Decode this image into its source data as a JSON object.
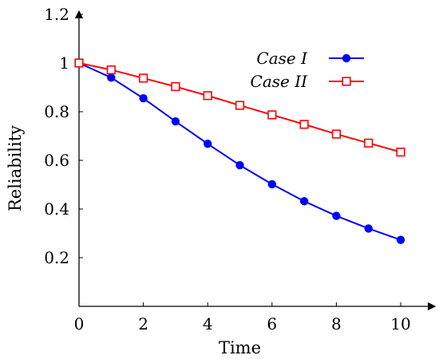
{
  "chart_data": {
    "type": "line",
    "title": "",
    "xlabel": "Time",
    "ylabel": "Reliability",
    "xlim": [
      0,
      10.9
    ],
    "ylim": [
      0,
      1.2
    ],
    "x_ticks": [
      0,
      2,
      4,
      6,
      8,
      10
    ],
    "x_tick_labels": [
      "0",
      "2",
      "4",
      "6",
      "8",
      "10"
    ],
    "y_ticks": [
      0.2,
      0.4,
      0.6,
      0.8,
      1.0,
      1.2
    ],
    "y_tick_labels": [
      "0.2",
      "0.4",
      "0.6",
      "0.8",
      "1",
      "1.2"
    ],
    "grid": false,
    "legend_position": "top-right",
    "series": [
      {
        "name": "Case I",
        "color": "#0000ff",
        "marker": "filled-circle",
        "x": [
          0,
          1,
          2,
          3,
          4,
          5,
          6,
          7,
          8,
          9,
          10
        ],
        "y": [
          1.0,
          0.94,
          0.855,
          0.76,
          0.668,
          0.58,
          0.502,
          0.432,
          0.372,
          0.32,
          0.273
        ]
      },
      {
        "name": "Case II",
        "color": "#ff0000",
        "marker": "open-square",
        "x": [
          0,
          1,
          2,
          3,
          4,
          5,
          6,
          7,
          8,
          9,
          10
        ],
        "y": [
          1.0,
          0.972,
          0.938,
          0.903,
          0.866,
          0.826,
          0.787,
          0.748,
          0.708,
          0.671,
          0.634
        ]
      }
    ]
  }
}
